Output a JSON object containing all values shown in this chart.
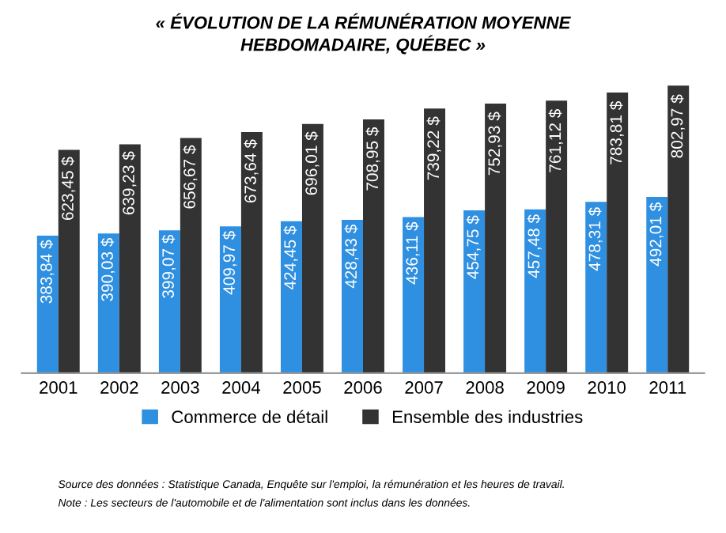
{
  "chart_data": {
    "type": "bar",
    "title": "« ÉVOLUTION DE LA RÉMUNÉRATION MOYENNE\nHEBDOMADAIRE, QUÉBEC »",
    "categories": [
      "2001",
      "2002",
      "2003",
      "2004",
      "2005",
      "2006",
      "2007",
      "2008",
      "2009",
      "2010",
      "2011"
    ],
    "series": [
      {
        "name": "Commerce de détail",
        "color": "#2f8fe0",
        "values": [
          383.84,
          390.03,
          399.07,
          409.97,
          424.45,
          428.43,
          436.11,
          454.75,
          457.48,
          478.31,
          492.01
        ],
        "value_labels": [
          "383,84 $",
          "390,03 $",
          "399,07 $",
          "409,97 $",
          "424,45 $",
          "428,43 $",
          "436,11 $",
          "454,75 $",
          "457,48 $",
          "478,31 $",
          "492,01 $"
        ]
      },
      {
        "name": "Ensemble des industries",
        "color": "#333333",
        "values": [
          623.45,
          639.23,
          656.67,
          673.64,
          696.01,
          708.95,
          739.22,
          752.93,
          761.12,
          783.81,
          802.97
        ],
        "value_labels": [
          "623,45 $",
          "639,23 $",
          "656,67 $",
          "673,64 $",
          "696,01 $",
          "708,95 $",
          "739,22 $",
          "752,93 $",
          "761,12 $",
          "783,81 $",
          "802,97 $"
        ]
      }
    ],
    "legend": "bottom",
    "grid": false,
    "tick_labels": "x",
    "annotations": [
      "Source des données : Statistique Canada, Enquête sur l'emploi, la rémunération et les heures de travail.",
      "Note : Les secteurs de l'automobile et de l'alimentation sont inclus dans les données."
    ]
  }
}
